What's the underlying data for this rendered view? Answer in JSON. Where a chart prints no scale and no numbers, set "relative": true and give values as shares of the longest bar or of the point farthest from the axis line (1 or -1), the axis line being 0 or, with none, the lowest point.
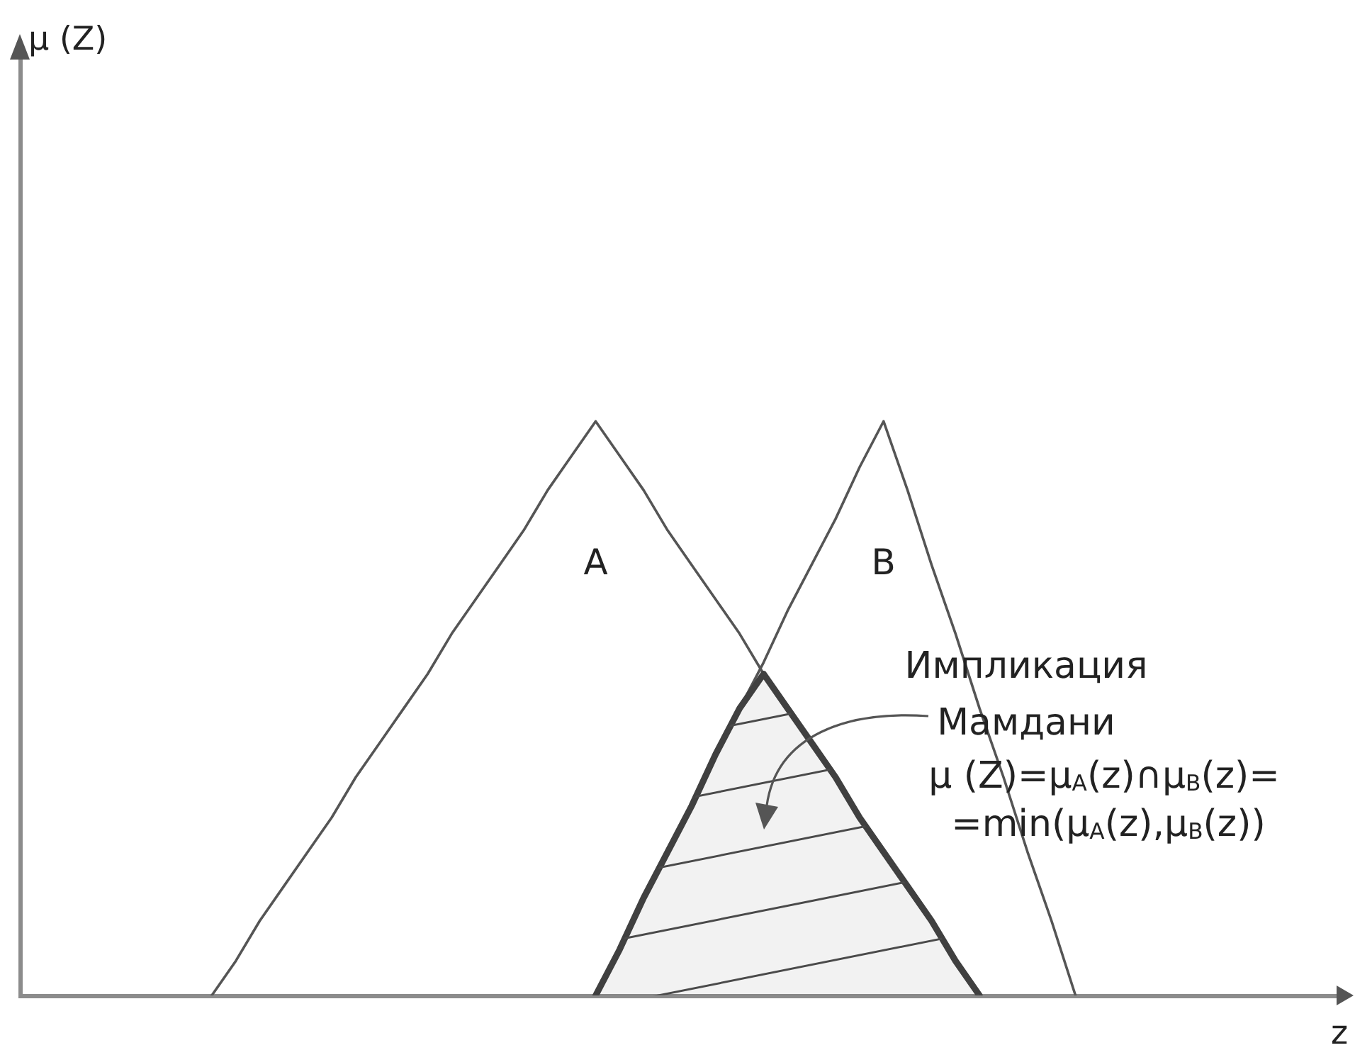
{
  "chart_data": {
    "type": "line",
    "xlabel": "z",
    "relative": true,
    "legend": false,
    "grid": false,
    "tick_labels": false,
    "marker": "none",
    "line_style": "solid",
    "categories": [
      null,
      null,
      null,
      null,
      null,
      null,
      null,
      null,
      null,
      null,
      null,
      null,
      null,
      null,
      null,
      null,
      null,
      null,
      null,
      null,
      null,
      null,
      null,
      null,
      null,
      null,
      null,
      null,
      null,
      null,
      null,
      null,
      null,
      null,
      null,
      null,
      null,
      null,
      null,
      null,
      null,
      null,
      null,
      null,
      null,
      null,
      null,
      null,
      null,
      null,
      null,
      null,
      null,
      null,
      null,
      null
    ],
    "series": [
      {
        "name": "A",
        "color": "#555555",
        "values": [
          null,
          null,
          null,
          null,
          null,
          null,
          null,
          null,
          0,
          0.06,
          0.13,
          0.19,
          0.25,
          0.31,
          0.38,
          0.44,
          0.5,
          0.56,
          0.63,
          0.69,
          0.75,
          0.81,
          0.88,
          0.94,
          1,
          0.94,
          0.88,
          0.81,
          0.75,
          0.69,
          0.63,
          0.56,
          0.5,
          0.44,
          0.38,
          0.31,
          0.25,
          0.19,
          0.13,
          0.06,
          0,
          null,
          null,
          null,
          null,
          null,
          null,
          null,
          null,
          null,
          null,
          null,
          null,
          null,
          null,
          null
        ]
      },
      {
        "name": "B",
        "color": "#555555",
        "values": [
          null,
          null,
          null,
          null,
          null,
          null,
          null,
          null,
          null,
          null,
          null,
          null,
          null,
          null,
          null,
          null,
          null,
          null,
          null,
          null,
          null,
          null,
          null,
          null,
          0,
          0.08,
          0.17,
          0.25,
          0.33,
          0.42,
          0.5,
          0.58,
          0.67,
          0.75,
          0.83,
          0.92,
          1,
          0.88,
          0.75,
          0.63,
          0.5,
          0.38,
          0.25,
          0.13,
          0,
          null,
          null,
          null,
          null,
          null,
          null,
          null,
          null,
          null,
          null,
          null
        ]
      },
      {
        "type": "area",
        "color": "#404040",
        "values": [
          null,
          null,
          null,
          null,
          null,
          null,
          null,
          null,
          null,
          null,
          null,
          null,
          null,
          null,
          null,
          null,
          null,
          null,
          null,
          null,
          null,
          null,
          null,
          null,
          0,
          0.08,
          0.17,
          0.25,
          0.33,
          0.42,
          0.5,
          0.56,
          0.5,
          0.44,
          0.38,
          0.31,
          0.25,
          0.19,
          0.13,
          0.06,
          0,
          null,
          null,
          null,
          null,
          null,
          null,
          null,
          null,
          null,
          null,
          null,
          null,
          null,
          null,
          null
        ]
      }
    ],
    "annotations": [
      "μ (Z)",
      "Импликация Мамдани",
      "μ (Z)=μ$_{A}$(z)∩μ$_{B}$(z)=",
      "=min(μ$_{A}$(z),μ$_{B}$(z))"
    ]
  }
}
